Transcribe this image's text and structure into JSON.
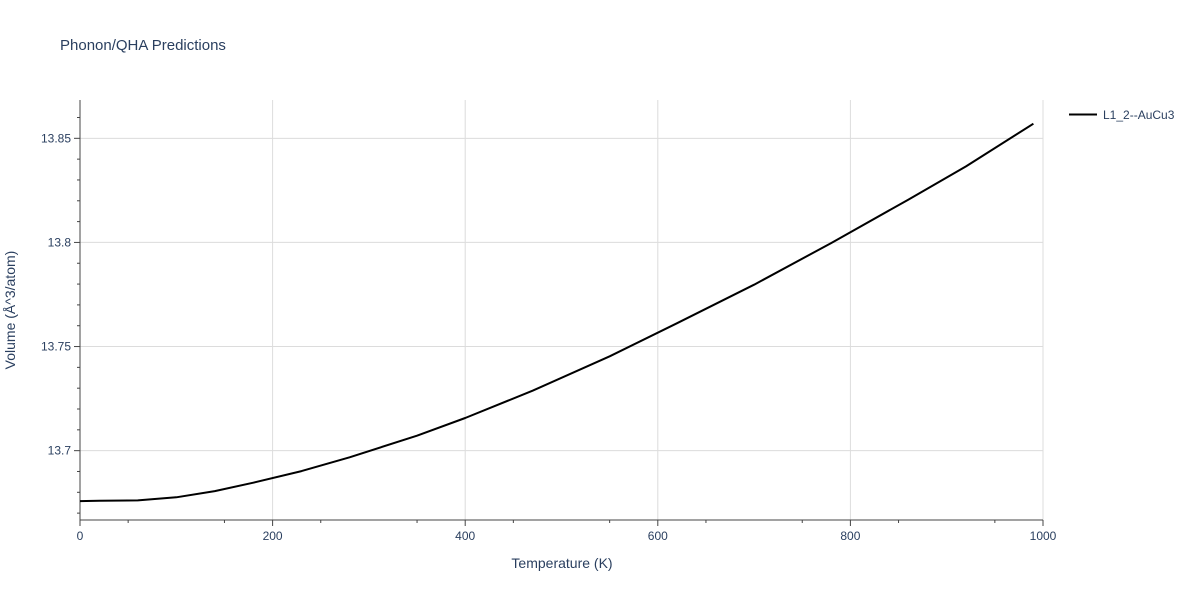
{
  "chart_data": {
    "type": "line",
    "title": "Phonon/QHA Predictions",
    "xlabel": "Temperature (K)",
    "ylabel": "Volume (Å^3/atom)",
    "xlim": [
      0,
      1000
    ],
    "ylim": [
      13.6667,
      13.8684
    ],
    "x_ticks": [
      0,
      200,
      400,
      600,
      800,
      1000
    ],
    "x_tick_labels": [
      "0",
      "200",
      "400",
      "600",
      "800",
      "1000"
    ],
    "y_ticks": [
      13.7,
      13.75,
      13.8,
      13.85
    ],
    "y_tick_labels": [
      "13.7",
      "13.75",
      "13.8",
      "13.85"
    ],
    "grid": true,
    "legend_position": "top-right",
    "series": [
      {
        "name": "L1_2--AuCu3",
        "color": "#000000",
        "x": [
          0,
          20,
          60,
          100,
          140,
          180,
          230,
          280,
          350,
          400,
          470,
          550,
          620,
          700,
          780,
          860,
          920,
          990
        ],
        "y": [
          13.6758,
          13.6759,
          13.6761,
          13.6776,
          13.6806,
          13.6846,
          13.6902,
          13.6968,
          13.7072,
          13.7157,
          13.7288,
          13.7453,
          13.7612,
          13.7797,
          13.7997,
          13.8205,
          13.8365,
          13.857
        ]
      }
    ]
  }
}
